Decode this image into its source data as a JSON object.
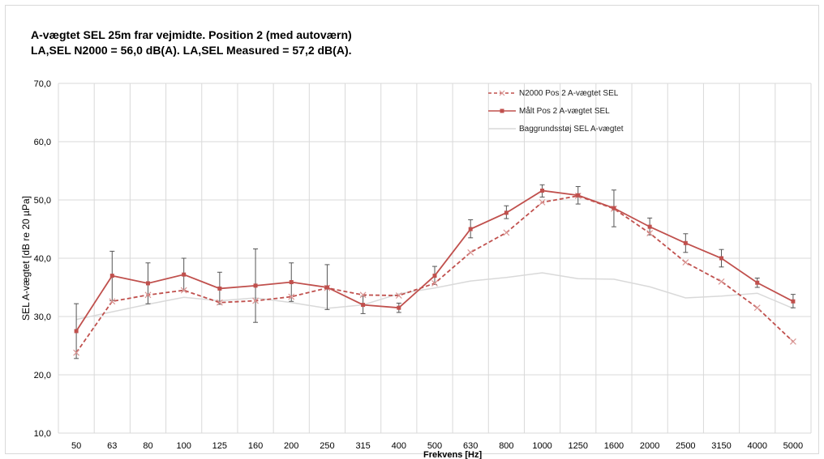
{
  "chart_data": {
    "type": "line",
    "title": "A-vægtet SEL 25m frar vejmidte. Position 2 (med autoværn)",
    "subtitle": "LA,SEL N2000 = 56,0 dB(A). LA,SEL Measured = 57,2 dB(A).",
    "xlabel": "Frekvens [Hz]",
    "ylabel": "SEL A-vægtet [dB re  20 µPa]",
    "ylim": [
      10,
      70
    ],
    "yticks": [
      "10,0",
      "20,0",
      "30,0",
      "40,0",
      "50,0",
      "60,0",
      "70,0"
    ],
    "grid": true,
    "legend_position": "top-right",
    "categories": [
      "50",
      "63",
      "80",
      "100",
      "125",
      "160",
      "200",
      "250",
      "315",
      "400",
      "500",
      "630",
      "800",
      "1000",
      "1250",
      "1600",
      "2000",
      "2500",
      "3150",
      "4000",
      "5000"
    ],
    "series": [
      {
        "name": "N2000 Pos 2 A-vægtet SEL",
        "style": "dashed",
        "marker": "x",
        "color": "#c0504d",
        "values": [
          23.8,
          32.6,
          33.7,
          34.5,
          32.4,
          32.7,
          33.4,
          34.9,
          33.7,
          33.6,
          35.7,
          41.0,
          44.4,
          49.6,
          50.7,
          48.5,
          44.3,
          39.3,
          36.0,
          31.5,
          25.7
        ]
      },
      {
        "name": "Målt Pos 2 A-vægtet SEL",
        "style": "solid",
        "marker": "square",
        "color": "#c0504d",
        "values": [
          27.5,
          37.0,
          35.7,
          37.2,
          34.8,
          35.3,
          35.9,
          35.0,
          32.0,
          31.5,
          37.0,
          45.0,
          47.8,
          51.6,
          50.8,
          48.6,
          45.4,
          42.6,
          40.0,
          35.8,
          32.6
        ],
        "error_low": [
          22.8,
          32.7,
          32.2,
          34.4,
          32.1,
          29.0,
          32.6,
          31.2,
          30.5,
          30.7,
          35.5,
          43.5,
          46.8,
          50.5,
          49.3,
          45.4,
          44.0,
          41.0,
          38.5,
          35.0,
          31.5
        ],
        "error_high": [
          32.2,
          41.2,
          39.2,
          40.0,
          37.6,
          41.6,
          39.2,
          38.9,
          33.5,
          32.3,
          38.6,
          46.6,
          49.0,
          52.6,
          52.3,
          51.7,
          46.9,
          44.2,
          41.5,
          36.6,
          33.8
        ]
      },
      {
        "name": "Baggrundsstøj SEL A-vægtet",
        "style": "solid",
        "marker": "none",
        "color": "#d9d9d9",
        "values": [
          29.5,
          30.8,
          32.1,
          33.3,
          32.7,
          33.2,
          32.4,
          31.4,
          32.0,
          33.9,
          34.9,
          36.1,
          36.7,
          37.5,
          36.5,
          36.4,
          35.1,
          33.2,
          33.5,
          34.0,
          31.4
        ]
      }
    ]
  }
}
